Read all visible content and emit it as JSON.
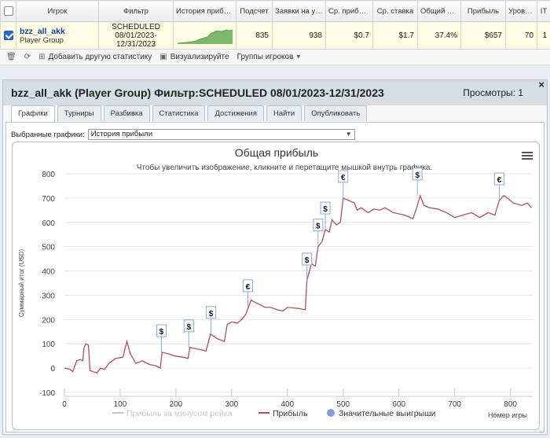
{
  "table": {
    "headers": [
      "Игрок",
      "Фильтр",
      "История прибыли",
      "Подсчет",
      "Заявки на участие",
      "Ср. прибыль",
      "Ср. ставка",
      "Общий ROI",
      "Прибыль",
      "Уровень",
      "IT"
    ],
    "row": {
      "player_name": "bzz_all_akk",
      "player_type": "Player Group",
      "filter_line1": "SCHEDULED",
      "filter_line2": "08/01/2023-",
      "filter_line3": "12/31/2023",
      "count": "835",
      "entries": "938",
      "avg_profit": "$0.7",
      "avg_stake": "$1.7",
      "roi": "37.4%",
      "profit": "$657",
      "level": "70",
      "it": "1"
    }
  },
  "toolbar": {
    "add_stats": "Добавить другую статистику",
    "visualize": "Визуализируйте",
    "player_groups": "Группы игроков"
  },
  "panel": {
    "title": "bzz_all_akk (Player Group) Фильтр:SCHEDULED 08/01/2023-12/31/2023",
    "views": "Просмотры: 1",
    "close": "×",
    "tabs": [
      "Графики",
      "Турниры",
      "Разбивка",
      "Статистика",
      "Достижения",
      "Найти",
      "Опубликовать"
    ],
    "chart_select_label": "Выбранные графики:",
    "chart_select_value": "История прибыли"
  },
  "chart_data": {
    "type": "line",
    "title": "Общая прибыль",
    "subtitle": "Чтобы увеличить изображение, кликните и перетащите мышкой внутрь графика.",
    "xlabel": "Номер игры",
    "ylabel": "Суммарный итог (USD)",
    "xlim": [
      0,
      840
    ],
    "ylim": [
      -100,
      800
    ],
    "x_ticks": [
      0,
      100,
      200,
      300,
      400,
      500,
      600,
      700,
      800
    ],
    "y_ticks": [
      -100,
      0,
      100,
      200,
      300,
      400,
      500,
      600,
      700,
      800
    ],
    "legend": [
      "Прибыль за минусом рейка",
      "Прибыль",
      "Значительные выигрыши"
    ],
    "legend_position": "bottom",
    "colors": {
      "profit": "#b0505a",
      "rake": "#d9b9bd",
      "win_marker": "#7aa2d8"
    },
    "series": [
      {
        "name": "Прибыль",
        "points": [
          [
            0,
            0
          ],
          [
            10,
            -5
          ],
          [
            15,
            -15
          ],
          [
            22,
            30
          ],
          [
            28,
            35
          ],
          [
            33,
            30
          ],
          [
            35,
            80
          ],
          [
            38,
            100
          ],
          [
            43,
            95
          ],
          [
            46,
            -10
          ],
          [
            58,
            -20
          ],
          [
            65,
            0
          ],
          [
            72,
            -5
          ],
          [
            80,
            20
          ],
          [
            92,
            40
          ],
          [
            105,
            45
          ],
          [
            112,
            110
          ],
          [
            118,
            60
          ],
          [
            128,
            20
          ],
          [
            140,
            30
          ],
          [
            152,
            15
          ],
          [
            163,
            10
          ],
          [
            172,
            0
          ],
          [
            175,
            65
          ],
          [
            185,
            60
          ],
          [
            198,
            50
          ],
          [
            212,
            45
          ],
          [
            222,
            40
          ],
          [
            225,
            85
          ],
          [
            235,
            80
          ],
          [
            246,
            75
          ],
          [
            254,
            70
          ],
          [
            262,
            140
          ],
          [
            275,
            120
          ],
          [
            287,
            110
          ],
          [
            292,
            180
          ],
          [
            300,
            190
          ],
          [
            310,
            185
          ],
          [
            318,
            200
          ],
          [
            325,
            220
          ],
          [
            330,
            250
          ],
          [
            335,
            280
          ],
          [
            342,
            270
          ],
          [
            352,
            260
          ],
          [
            360,
            250
          ],
          [
            370,
            250
          ],
          [
            382,
            240
          ],
          [
            392,
            235
          ],
          [
            400,
            250
          ],
          [
            422,
            245
          ],
          [
            432,
            240
          ],
          [
            435,
            360
          ],
          [
            443,
            430
          ],
          [
            450,
            420
          ],
          [
            455,
            500
          ],
          [
            462,
            520
          ],
          [
            468,
            570
          ],
          [
            475,
            560
          ],
          [
            480,
            610
          ],
          [
            488,
            590
          ],
          [
            495,
            600
          ],
          [
            500,
            700
          ],
          [
            510,
            690
          ],
          [
            520,
            680
          ],
          [
            525,
            650
          ],
          [
            532,
            660
          ],
          [
            545,
            640
          ],
          [
            555,
            655
          ],
          [
            565,
            650
          ],
          [
            575,
            660
          ],
          [
            590,
            640
          ],
          [
            610,
            630
          ],
          [
            625,
            615
          ],
          [
            632,
            660
          ],
          [
            638,
            710
          ],
          [
            645,
            670
          ],
          [
            655,
            660
          ],
          [
            670,
            655
          ],
          [
            685,
            640
          ],
          [
            700,
            620
          ],
          [
            715,
            630
          ],
          [
            730,
            640
          ],
          [
            745,
            620
          ],
          [
            760,
            640
          ],
          [
            772,
            630
          ],
          [
            780,
            690
          ],
          [
            788,
            710
          ],
          [
            795,
            700
          ],
          [
            805,
            680
          ],
          [
            820,
            670
          ],
          [
            830,
            680
          ],
          [
            838,
            660
          ]
        ]
      }
    ],
    "big_wins": [
      {
        "x": 174,
        "y": 65,
        "label": "$"
      },
      {
        "x": 223,
        "y": 85,
        "label": "$"
      },
      {
        "x": 263,
        "y": 140,
        "label": "$"
      },
      {
        "x": 329,
        "y": 250,
        "label": "€"
      },
      {
        "x": 435,
        "y": 360,
        "label": "$"
      },
      {
        "x": 455,
        "y": 500,
        "label": "$"
      },
      {
        "x": 468,
        "y": 570,
        "label": "$"
      },
      {
        "x": 500,
        "y": 700,
        "label": "€"
      },
      {
        "x": 633,
        "y": 710,
        "label": "$"
      },
      {
        "x": 780,
        "y": 690,
        "label": "€"
      }
    ]
  }
}
